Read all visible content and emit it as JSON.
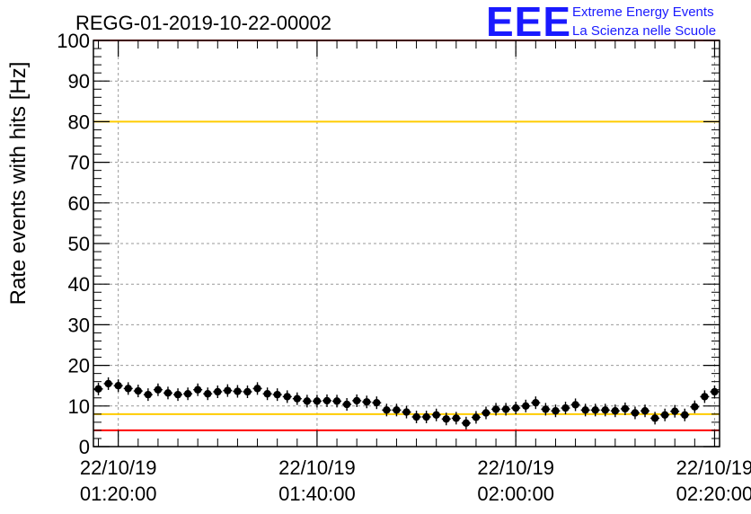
{
  "title": "REGG-01-2019-10-22-00002",
  "logo": {
    "big": "EEE",
    "line1": "Extreme Energy Events",
    "line2": "La Scienza nelle Scuole",
    "color": "#1a1aff"
  },
  "chart_data": {
    "type": "scatter",
    "title": "REGG-01-2019-10-22-00002",
    "ylabel": "Rate events with hits [Hz]",
    "xlabel": "",
    "ylim": [
      0,
      100
    ],
    "xlim_minutes": [
      77.5,
      140.5
    ],
    "yticks": [
      0,
      10,
      20,
      30,
      40,
      50,
      60,
      70,
      80,
      90,
      100
    ],
    "xticks": [
      {
        "minutes": 80,
        "date": "22/10/19",
        "time": "01:20:00"
      },
      {
        "minutes": 100,
        "date": "22/10/19",
        "time": "01:40:00"
      },
      {
        "minutes": 120,
        "date": "22/10/19",
        "time": "02:00:00"
      },
      {
        "minutes": 140,
        "date": "22/10/19",
        "time": "02:20:00"
      }
    ],
    "grid": true,
    "reference_lines": [
      {
        "y": 100,
        "color": "#ff0000"
      },
      {
        "y": 80,
        "color": "#ffcc00"
      },
      {
        "y": 8,
        "color": "#ffcc00"
      },
      {
        "y": 4,
        "color": "#ff0000"
      }
    ],
    "series": [
      {
        "color": "#000000",
        "x_minutes": [
          78,
          79,
          80,
          81,
          82,
          83,
          84,
          85,
          86,
          87,
          88,
          89,
          90,
          91,
          92,
          93,
          94,
          95,
          96,
          97,
          98,
          99,
          100,
          101,
          102,
          103,
          104,
          105,
          106,
          107,
          108,
          109,
          110,
          111,
          112,
          113,
          114,
          115,
          116,
          117,
          118,
          119,
          120,
          121,
          122,
          123,
          124,
          125,
          126,
          127,
          128,
          129,
          130,
          131,
          132,
          133,
          134,
          135,
          136,
          137,
          138,
          139,
          140
        ],
        "y": [
          14.2,
          15.5,
          15.0,
          14.3,
          13.7,
          12.8,
          14.0,
          13.2,
          12.8,
          13.0,
          14.0,
          13.0,
          13.5,
          13.8,
          13.6,
          13.5,
          14.3,
          13.0,
          12.8,
          12.3,
          11.8,
          11.2,
          11.2,
          11.3,
          11.2,
          10.4,
          11.3,
          11.0,
          10.8,
          9.0,
          9.0,
          8.5,
          7.3,
          7.3,
          7.8,
          6.8,
          7.0,
          5.8,
          7.2,
          8.3,
          9.2,
          9.2,
          9.5,
          10.0,
          10.8,
          9.2,
          8.8,
          9.5,
          10.3,
          9.0,
          9.0,
          9.0,
          8.8,
          9.3,
          8.3,
          8.8,
          7.0,
          7.8,
          8.7,
          7.8,
          9.8,
          12.3,
          13.5
        ]
      }
    ]
  }
}
